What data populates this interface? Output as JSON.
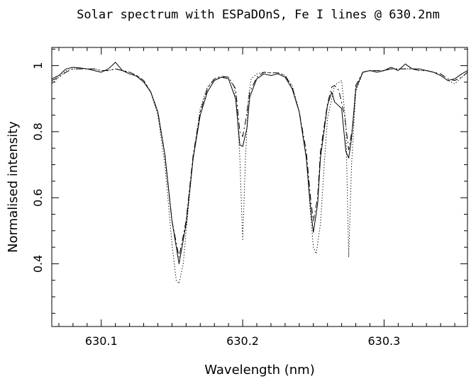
{
  "chart_data": {
    "type": "line",
    "title": "Solar spectrum with ESPaDOnS, Fe I lines @ 630.2nm",
    "xlabel": "Wavelength (nm)",
    "ylabel": "Normalised intensity",
    "xlim": [
      630.065,
      630.359
    ],
    "ylim": [
      0.21,
      1.055
    ],
    "xticks": [
      630.1,
      630.2,
      630.3
    ],
    "yticks": [
      0.4,
      0.6,
      0.8,
      1.0
    ],
    "xtick_labels": [
      "630.1",
      "630.2",
      "630.3"
    ],
    "ytick_labels": [
      "0.4",
      "0.6",
      "0.8",
      "1"
    ],
    "grid": false,
    "legend": "none",
    "series": [
      {
        "style": "solid",
        "x": [
          630.065,
          630.07,
          630.075,
          630.08,
          630.085,
          630.09,
          630.095,
          630.1,
          630.105,
          630.11,
          630.115,
          630.12,
          630.125,
          630.13,
          630.135,
          630.14,
          630.145,
          630.15,
          630.155,
          630.16,
          630.165,
          630.17,
          630.175,
          630.18,
          630.185,
          630.19,
          630.195,
          630.198,
          630.2,
          630.203,
          630.205,
          630.21,
          630.215,
          630.22,
          630.225,
          630.23,
          630.235,
          630.24,
          630.245,
          630.248,
          630.25,
          630.253,
          630.255,
          630.26,
          630.263,
          630.265,
          630.27,
          630.273,
          630.275,
          630.277,
          630.28,
          630.285,
          630.29,
          630.295,
          630.3,
          630.305,
          630.31,
          630.315,
          630.32,
          630.325,
          630.33,
          630.335,
          630.34,
          630.345,
          630.35,
          630.355,
          630.359
        ],
        "y": [
          0.96,
          0.97,
          0.99,
          0.995,
          0.993,
          0.99,
          0.985,
          0.98,
          0.99,
          1.01,
          0.985,
          0.975,
          0.968,
          0.95,
          0.92,
          0.86,
          0.73,
          0.53,
          0.4,
          0.52,
          0.72,
          0.85,
          0.92,
          0.955,
          0.965,
          0.96,
          0.9,
          0.76,
          0.755,
          0.81,
          0.905,
          0.96,
          0.975,
          0.97,
          0.975,
          0.965,
          0.93,
          0.86,
          0.72,
          0.57,
          0.495,
          0.58,
          0.72,
          0.88,
          0.92,
          0.89,
          0.87,
          0.74,
          0.72,
          0.78,
          0.93,
          0.98,
          0.985,
          0.98,
          0.985,
          0.995,
          0.985,
          1.005,
          0.99,
          0.99,
          0.985,
          0.98,
          0.97,
          0.955,
          0.96,
          0.975,
          0.985
        ]
      },
      {
        "style": "dashed",
        "x": [
          630.065,
          630.07,
          630.075,
          630.08,
          630.085,
          630.09,
          630.095,
          630.1,
          630.105,
          630.11,
          630.115,
          630.12,
          630.125,
          630.13,
          630.135,
          630.14,
          630.145,
          630.15,
          630.155,
          630.16,
          630.165,
          630.17,
          630.175,
          630.18,
          630.185,
          630.19,
          630.195,
          630.198,
          630.2,
          630.202,
          630.205,
          630.21,
          630.215,
          630.22,
          630.225,
          630.23,
          630.235,
          630.24,
          630.245,
          630.248,
          630.25,
          630.253,
          630.255,
          630.26,
          630.263,
          630.265,
          630.268,
          630.272,
          630.275,
          630.278,
          630.28,
          630.285,
          630.29,
          630.295,
          630.3,
          630.305,
          630.31,
          630.315,
          630.32,
          630.325,
          630.33,
          630.335,
          630.34,
          630.345,
          630.35,
          630.355,
          630.359
        ],
        "y": [
          0.955,
          0.965,
          0.98,
          0.99,
          0.99,
          0.99,
          0.99,
          0.985,
          0.985,
          0.99,
          0.985,
          0.98,
          0.97,
          0.955,
          0.92,
          0.86,
          0.73,
          0.53,
          0.42,
          0.53,
          0.73,
          0.86,
          0.93,
          0.96,
          0.968,
          0.965,
          0.93,
          0.8,
          0.785,
          0.83,
          0.92,
          0.965,
          0.98,
          0.978,
          0.978,
          0.97,
          0.935,
          0.86,
          0.74,
          0.6,
          0.53,
          0.6,
          0.74,
          0.885,
          0.935,
          0.94,
          0.925,
          0.85,
          0.745,
          0.82,
          0.94,
          0.98,
          0.985,
          0.985,
          0.985,
          0.99,
          0.99,
          0.99,
          0.99,
          0.985,
          0.985,
          0.98,
          0.975,
          0.96,
          0.955,
          0.965,
          0.98
        ]
      },
      {
        "style": "dotted",
        "x": [
          630.065,
          630.07,
          630.075,
          630.08,
          630.085,
          630.09,
          630.095,
          630.1,
          630.105,
          630.11,
          630.115,
          630.12,
          630.125,
          630.13,
          630.135,
          630.14,
          630.145,
          630.15,
          630.153,
          630.155,
          630.158,
          630.16,
          630.165,
          630.17,
          630.175,
          630.18,
          630.185,
          630.19,
          630.194,
          630.196,
          630.198,
          630.2,
          630.202,
          630.204,
          630.206,
          630.21,
          630.215,
          630.22,
          630.225,
          630.23,
          630.235,
          630.24,
          630.245,
          630.248,
          630.25,
          630.252,
          630.255,
          630.258,
          630.26,
          630.265,
          630.27,
          630.273,
          630.275,
          630.277,
          630.28,
          630.285,
          630.29,
          630.295,
          630.3,
          630.305,
          630.31,
          630.315,
          630.32,
          630.325,
          630.33,
          630.335,
          630.34,
          630.345,
          630.35,
          630.355,
          630.359
        ],
        "y": [
          0.945,
          0.965,
          0.985,
          0.99,
          0.99,
          0.99,
          0.99,
          0.985,
          0.985,
          0.99,
          0.985,
          0.98,
          0.97,
          0.955,
          0.92,
          0.85,
          0.7,
          0.46,
          0.35,
          0.34,
          0.4,
          0.5,
          0.72,
          0.87,
          0.935,
          0.96,
          0.965,
          0.965,
          0.935,
          0.87,
          0.72,
          0.47,
          0.72,
          0.9,
          0.96,
          0.975,
          0.98,
          0.978,
          0.978,
          0.97,
          0.94,
          0.86,
          0.72,
          0.55,
          0.45,
          0.43,
          0.52,
          0.72,
          0.84,
          0.94,
          0.955,
          0.82,
          0.42,
          0.7,
          0.92,
          0.98,
          0.985,
          0.985,
          0.985,
          0.99,
          0.99,
          0.99,
          0.99,
          0.985,
          0.985,
          0.98,
          0.97,
          0.955,
          0.945,
          0.965,
          0.98
        ]
      }
    ]
  }
}
